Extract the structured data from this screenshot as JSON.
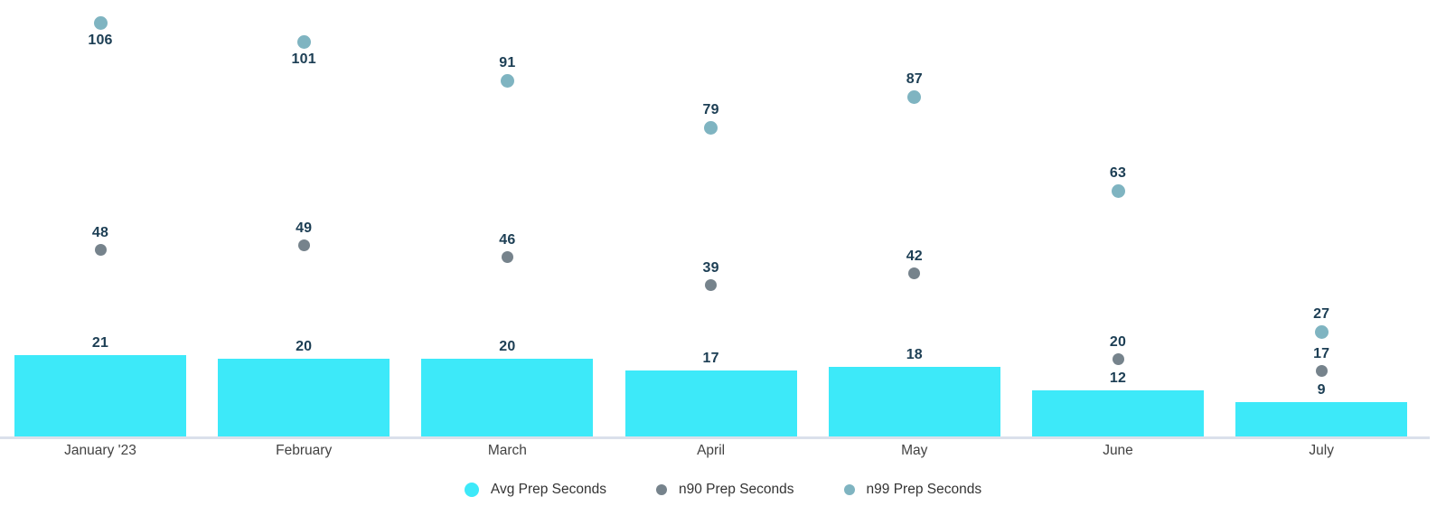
{
  "chart_data": {
    "type": "bar",
    "title": "",
    "xlabel": "",
    "ylabel": "",
    "categories": [
      "January '23",
      "February",
      "March",
      "April",
      "May",
      "June",
      "July"
    ],
    "series": [
      {
        "name": "Avg Prep Seconds",
        "render": "bar",
        "color": "#3de9f9",
        "values": [
          21,
          20,
          20,
          17,
          18,
          12,
          9
        ]
      },
      {
        "name": "n90 Prep Seconds",
        "render": "scatter",
        "color": "#76838c",
        "values": [
          48,
          49,
          46,
          39,
          42,
          20,
          17
        ]
      },
      {
        "name": "n99 Prep Seconds",
        "render": "scatter",
        "color": "#7fb4c1",
        "values": [
          106,
          101,
          91,
          79,
          87,
          63,
          27
        ]
      }
    ],
    "ylim": [
      0,
      112
    ],
    "grid": false,
    "y_axis_shown": false,
    "value_labels_shown": true,
    "legend_position": "bottom"
  },
  "colors": {
    "value_label": "#1c3e54",
    "month_label": "#424242",
    "legend_text": "#333333",
    "axis_line": "#dae0eb",
    "background": "#ffffff"
  }
}
